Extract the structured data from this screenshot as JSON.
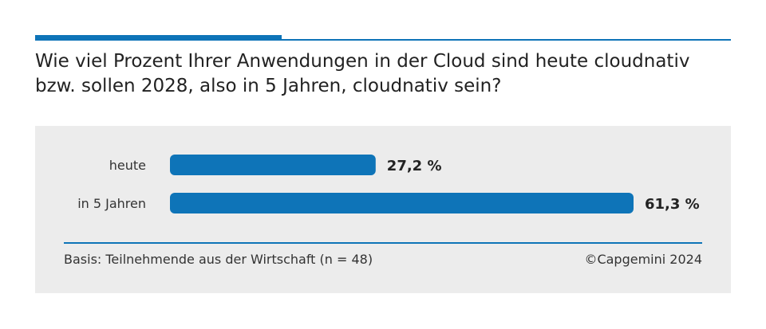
{
  "title": "Wie viel Prozent Ihrer Anwendungen in der Cloud sind heute cloudnativ bzw. sollen 2028, also in 5 Jahren, cloudnativ sein?",
  "footer": {
    "basis": "Basis: Teilnehmende aus der Wirtschaft (n = 48)",
    "copyright": "©Capgemini 2024"
  },
  "colors": {
    "accent": "#0e74b8",
    "panel": "#ececec"
  },
  "chart_data": {
    "type": "bar",
    "orientation": "horizontal",
    "categories": [
      "heute",
      "in 5 Jahren"
    ],
    "values": [
      27.2,
      61.3
    ],
    "value_labels": [
      "27,2 %",
      "61,3 %"
    ],
    "unit": "%",
    "xlim": [
      0,
      61.3
    ],
    "grid": false,
    "legend": "none"
  }
}
